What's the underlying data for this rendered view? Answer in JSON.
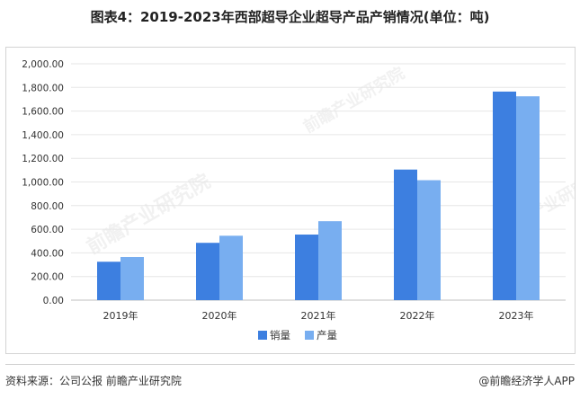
{
  "title": "图表4：2019-2023年西部超导企业超导产品产销情况(单位：吨)",
  "watermark_text": "前瞻产业研究院",
  "footer": {
    "source": "资料来源：公司公报 前瞻产业研究院",
    "brand": "@前瞻经济学人APP"
  },
  "colors": {
    "sales": "#3d7fe0",
    "production": "#78aef0",
    "grid": "#e6e6e6",
    "axis": "#bfbfbf",
    "text": "#333333"
  },
  "chart_data": {
    "type": "bar",
    "categories": [
      "2019年",
      "2020年",
      "2021年",
      "2022年",
      "2023年"
    ],
    "series": [
      {
        "name": "销量",
        "values": [
          325,
          485,
          555,
          1105,
          1765
        ]
      },
      {
        "name": "产量",
        "values": [
          365,
          545,
          668,
          1015,
          1725
        ]
      }
    ],
    "ylim": [
      0,
      2000
    ],
    "yticks": [
      "0.00",
      "200.00",
      "400.00",
      "600.00",
      "800.00",
      "1,000.00",
      "1,200.00",
      "1,400.00",
      "1,600.00",
      "1,800.00",
      "2,000.00"
    ],
    "ytick_values": [
      0,
      200,
      400,
      600,
      800,
      1000,
      1200,
      1400,
      1600,
      1800,
      2000
    ],
    "xlabel": "",
    "ylabel": "",
    "grid": true,
    "legend": "bottom-center"
  }
}
